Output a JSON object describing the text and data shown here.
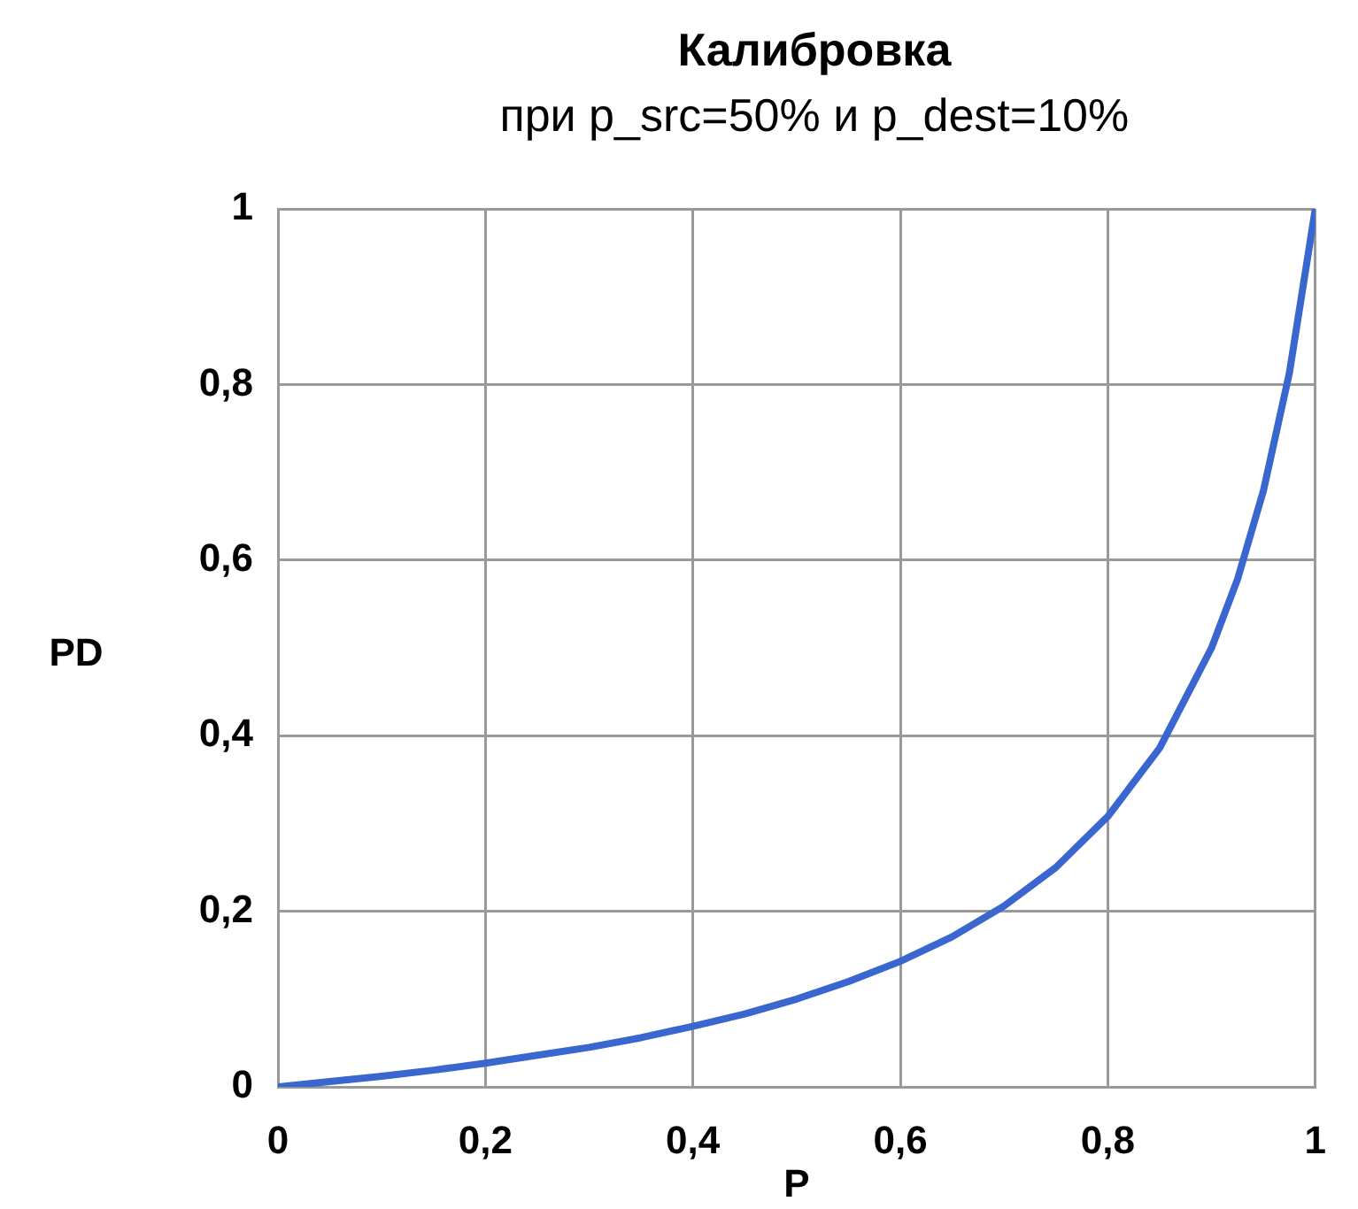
{
  "chart_data": {
    "type": "line",
    "title": "Калибровка",
    "subtitle": "при p_src=50% и p_dest=10%",
    "xlabel": "P",
    "ylabel": "PD",
    "x": [
      0,
      0.05,
      0.1,
      0.15,
      0.2,
      0.25,
      0.3,
      0.35,
      0.4,
      0.45,
      0.5,
      0.55,
      0.6,
      0.65,
      0.7,
      0.75,
      0.8,
      0.85,
      0.9,
      0.925,
      0.95,
      0.975,
      1
    ],
    "series": [
      {
        "color": "#3a66d0",
        "values": [
          0,
          0.006,
          0.012,
          0.019,
          0.027,
          0.036,
          0.045,
          0.056,
          0.069,
          0.083,
          0.1,
          0.12,
          0.143,
          0.171,
          0.206,
          0.25,
          0.308,
          0.386,
          0.5,
          0.578,
          0.679,
          0.813,
          1
        ]
      }
    ],
    "xlim": [
      0,
      1
    ],
    "ylim": [
      0,
      1
    ],
    "xticks": [
      0,
      {
        "value": 0.2,
        "label": "0,2"
      },
      {
        "value": 0.4,
        "label": "0,4"
      },
      {
        "value": 0.6,
        "label": "0,6"
      },
      {
        "value": 0.8,
        "label": "0,8"
      },
      1
    ],
    "yticks": [
      0,
      {
        "value": 0.2,
        "label": "0,2"
      },
      {
        "value": 0.4,
        "label": "0,4"
      },
      {
        "value": 0.6,
        "label": "0,6"
      },
      {
        "value": 0.8,
        "label": "0,8"
      },
      1
    ],
    "grid": true,
    "legend": false,
    "marker": "none",
    "line_style": "solid"
  }
}
